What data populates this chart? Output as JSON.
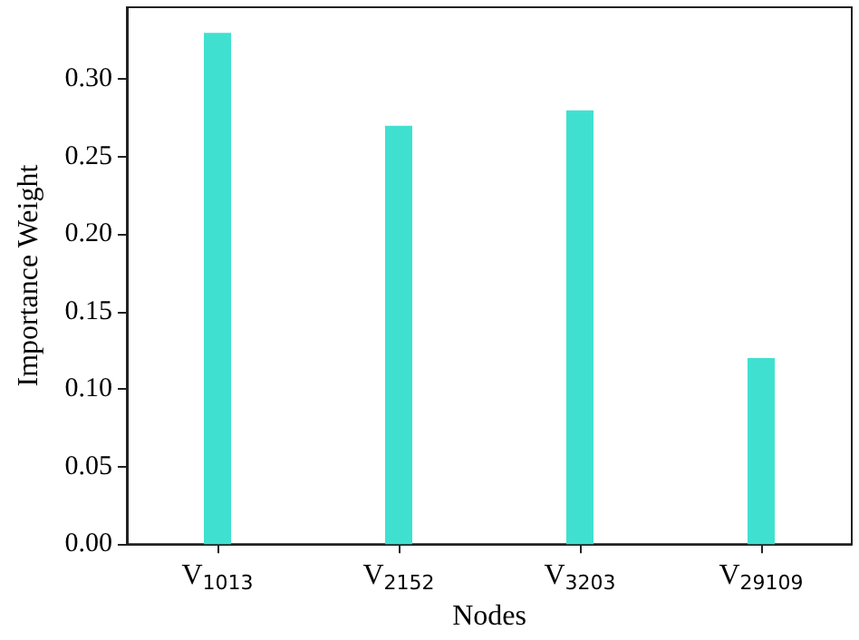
{
  "chart_data": {
    "type": "bar",
    "xlabel": "Nodes",
    "ylabel": "Importance Weight",
    "categories": [
      "V$_{1013}$",
      "V$_{2152}$",
      "V$_{3203}$",
      "V$_{29109}$"
    ],
    "values": [
      0.33,
      0.27,
      0.28,
      0.12
    ],
    "color": "#40e0d0",
    "ylim": [
      0,
      0.3465
    ],
    "yticks": [
      {
        "value": 0,
        "label": "0.00"
      },
      {
        "value": 0.05,
        "label": "0.05"
      },
      {
        "value": 0.1,
        "label": "0.10"
      },
      {
        "value": 0.15,
        "label": "0.15"
      },
      {
        "value": 0.2,
        "label": "0.20"
      },
      {
        "value": 0.25,
        "label": "0.25"
      },
      {
        "value": 0.3,
        "label": "0.30"
      }
    ],
    "grid": false
  }
}
